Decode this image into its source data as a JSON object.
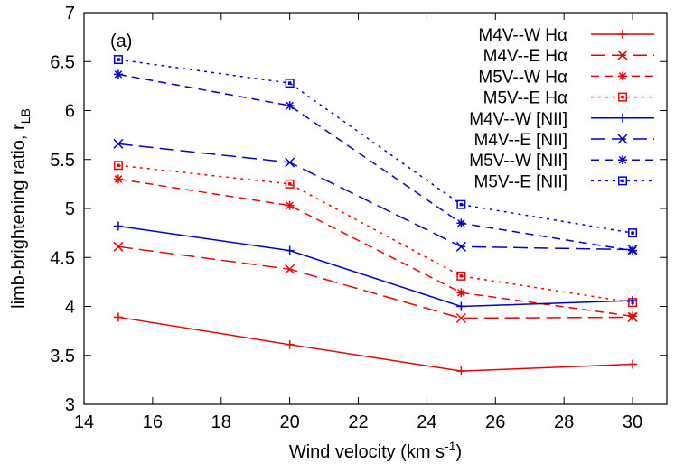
{
  "chart_data": {
    "type": "line",
    "panel_label": "(a)",
    "xlabel": {
      "main": "Wind velocity (km s",
      "sup": "-1",
      "close": ")"
    },
    "ylabel": {
      "main": "limb-brightening ratio, r",
      "sub": "LB"
    },
    "xlim": [
      14,
      31
    ],
    "ylim": [
      3,
      7
    ],
    "xticks": [
      14,
      16,
      18,
      20,
      22,
      24,
      26,
      28,
      30
    ],
    "yticks": [
      3,
      3.5,
      4,
      4.5,
      5,
      5.5,
      6,
      6.5,
      7
    ],
    "ytick_labels": [
      "3",
      "3.5",
      "4",
      "4.5",
      "5",
      "5.5",
      "6",
      "6.5",
      "7"
    ],
    "legend_position": "top-right",
    "x": [
      15,
      20,
      25,
      30
    ],
    "series": [
      {
        "name": "M4V--W Hα",
        "color": "#ee0000",
        "dash": "solid",
        "marker": "plus",
        "values": [
          3.89,
          3.61,
          3.34,
          3.41
        ]
      },
      {
        "name": "M4V--E Hα",
        "color": "#ee0000",
        "dash": "longdash",
        "marker": "x",
        "values": [
          4.61,
          4.38,
          3.88,
          3.89
        ]
      },
      {
        "name": "M5V--W Hα",
        "color": "#ee0000",
        "dash": "shortdash",
        "marker": "star",
        "values": [
          5.3,
          5.03,
          4.14,
          3.9
        ]
      },
      {
        "name": "M5V--E Hα",
        "color": "#ee0000",
        "dash": "dot",
        "marker": "square",
        "values": [
          5.44,
          5.25,
          4.31,
          4.04
        ]
      },
      {
        "name": "M4V--W [NII]",
        "color": "#0000cc",
        "dash": "solid",
        "marker": "plus",
        "values": [
          4.82,
          4.57,
          4.0,
          4.06
        ]
      },
      {
        "name": "M4V--E [NII]",
        "color": "#0000cc",
        "dash": "longdash",
        "marker": "x",
        "values": [
          5.66,
          5.47,
          4.61,
          4.58
        ]
      },
      {
        "name": "M5V--W [NII]",
        "color": "#0000cc",
        "dash": "shortdash",
        "marker": "star",
        "values": [
          6.37,
          6.05,
          4.85,
          4.57
        ]
      },
      {
        "name": "M5V--E [NII]",
        "color": "#0000cc",
        "dash": "dot",
        "marker": "square",
        "values": [
          6.52,
          6.28,
          5.04,
          4.75
        ]
      }
    ]
  }
}
